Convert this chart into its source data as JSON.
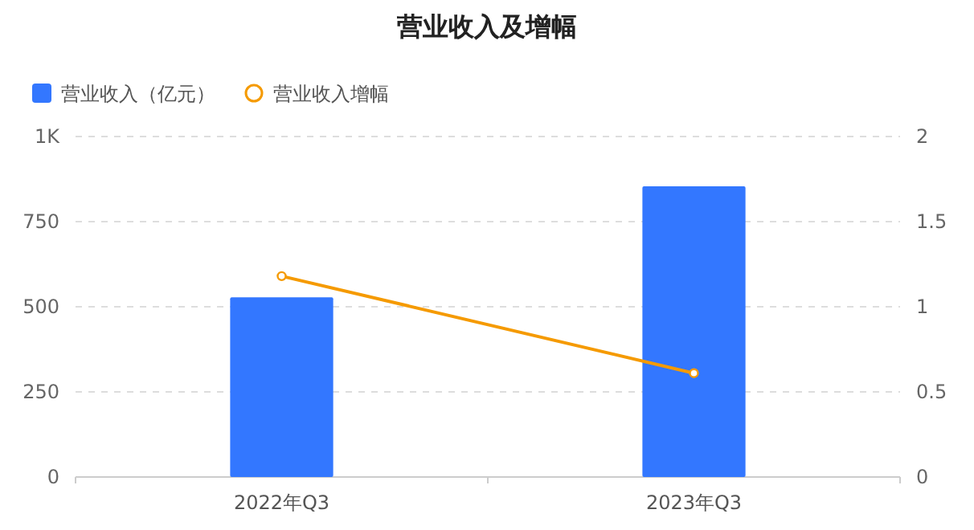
{
  "chart_data": {
    "type": "bar",
    "title": "营业收入及增幅",
    "categories": [
      "2022年Q3",
      "2023年Q3"
    ],
    "series": [
      {
        "name": "营业收入（亿元）",
        "color": "#3377ff",
        "values": [
          528,
          854
        ]
      },
      {
        "name": "营业收入增幅",
        "type": "line",
        "axis": "y2",
        "color": "#f59a00",
        "marker": "circle",
        "values": [
          1.18,
          0.61
        ]
      }
    ],
    "ylim": [
      0,
      1000
    ],
    "yticks": [
      0,
      250,
      500,
      750,
      {
        "value": 1000,
        "label": "1K"
      }
    ],
    "y2lim": [
      0,
      2
    ],
    "y2ticks": [
      0,
      0.5,
      1,
      1.5,
      2
    ],
    "grid": "y",
    "legend": "top left"
  }
}
